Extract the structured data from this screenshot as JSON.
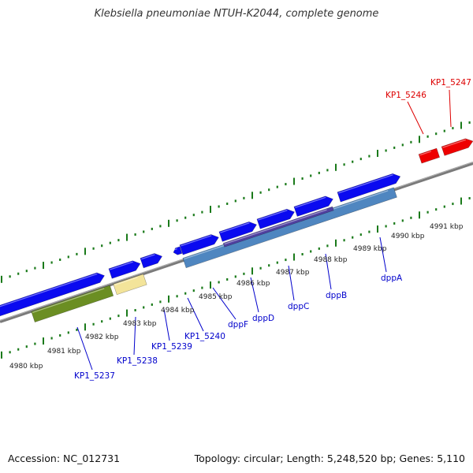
{
  "title": "Klebsiella pneumoniae NTUH-K2044, complete genome",
  "footer": {
    "accession": "Accession: NC_012731",
    "topology": "Topology: circular; Length: 5,248,520 bp; Genes: 5,110"
  },
  "colors": {
    "forward_gene": "#0a0af0",
    "reverse_gene": "#4f86c0",
    "operon": "#5040a0",
    "pseudo_green": "#6b8e23",
    "pseudo_yellow": "#f3e49a",
    "highlight_red": "#ee0000",
    "scale_green": "#1a7a1a",
    "backbone": "#808080",
    "label_blue": "#0000cc",
    "label_red": "#dd0000"
  },
  "kbp_ticks": [
    "4980 kbp",
    "4981 kbp",
    "4982 kbp",
    "4983 kbp",
    "4984 kbp",
    "4985 kbp",
    "4986 kbp",
    "4987 kbp",
    "4988 kbp",
    "4989 kbp",
    "4990 kbp",
    "4991 kbp"
  ],
  "gene_labels": [
    {
      "name": "KP1_5237",
      "color": "blue"
    },
    {
      "name": "KP1_5238",
      "color": "blue"
    },
    {
      "name": "KP1_5239",
      "color": "blue"
    },
    {
      "name": "KP1_5240",
      "color": "blue"
    },
    {
      "name": "dppF",
      "color": "blue"
    },
    {
      "name": "dppD",
      "color": "blue"
    },
    {
      "name": "dppC",
      "color": "blue"
    },
    {
      "name": "dppB",
      "color": "blue"
    },
    {
      "name": "dppA",
      "color": "blue"
    },
    {
      "name": "KP1_5246",
      "color": "red"
    },
    {
      "name": "KP1_5247",
      "color": "red"
    }
  ]
}
